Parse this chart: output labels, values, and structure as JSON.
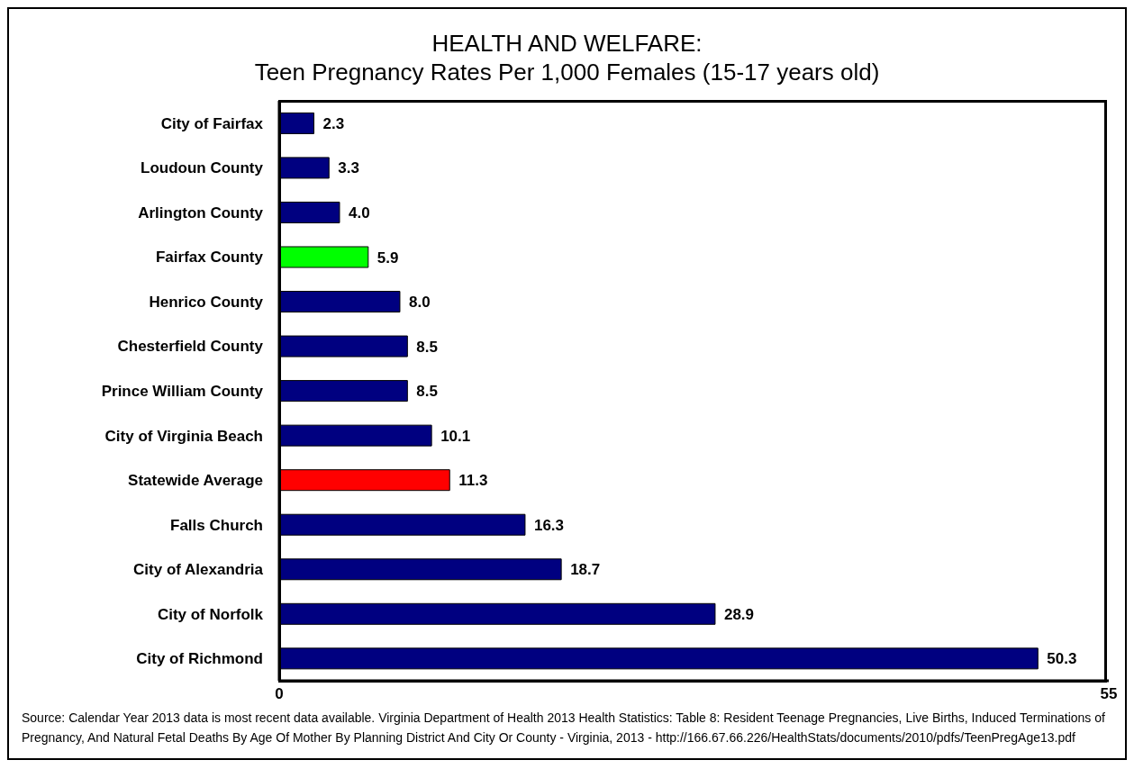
{
  "chart_data": {
    "type": "bar",
    "orientation": "horizontal",
    "title": "HEALTH AND WELFARE:",
    "subtitle": "Teen Pregnancy Rates Per 1,000 Females (15-17 years old)",
    "categories": [
      "City of Fairfax",
      "Loudoun County",
      "Arlington County",
      "Fairfax County",
      "Henrico County",
      "Chesterfield County",
      "Prince William County",
      "City of Virginia Beach",
      "Statewide Average",
      "Falls Church",
      "City of Alexandria",
      "City of Norfolk",
      "City of Richmond"
    ],
    "values": [
      2.3,
      3.3,
      4.0,
      5.9,
      8.0,
      8.5,
      8.5,
      10.1,
      11.3,
      16.3,
      18.7,
      28.9,
      50.3
    ],
    "value_labels": [
      "2.3",
      "3.3",
      "4.0",
      "5.9",
      "8.0",
      "8.5",
      "8.5",
      "10.1",
      "11.3",
      "16.3",
      "18.7",
      "28.9",
      "50.3"
    ],
    "colors": [
      "#000080",
      "#000080",
      "#000080",
      "#00ff00",
      "#000080",
      "#000080",
      "#000080",
      "#000080",
      "#ff0000",
      "#000080",
      "#000080",
      "#000080",
      "#000080"
    ],
    "xlim": [
      0,
      55
    ],
    "xticks": [
      0,
      55
    ],
    "grid": false,
    "legend": false,
    "annotations": [
      "Source: Calendar Year 2013 data is most recent data available.  Virginia Department of Health 2013 Health Statistics:  Table 8: Resident Teenage Pregnancies, Live Births, Induced Terminations of Pregnancy, And Natural Fetal Deaths By Age Of Mother By Planning District And City Or County - Virginia, 2013 - http://166.67.66.226/HealthStats/documents/2010/pdfs/TeenPregAge13.pdf"
    ]
  }
}
